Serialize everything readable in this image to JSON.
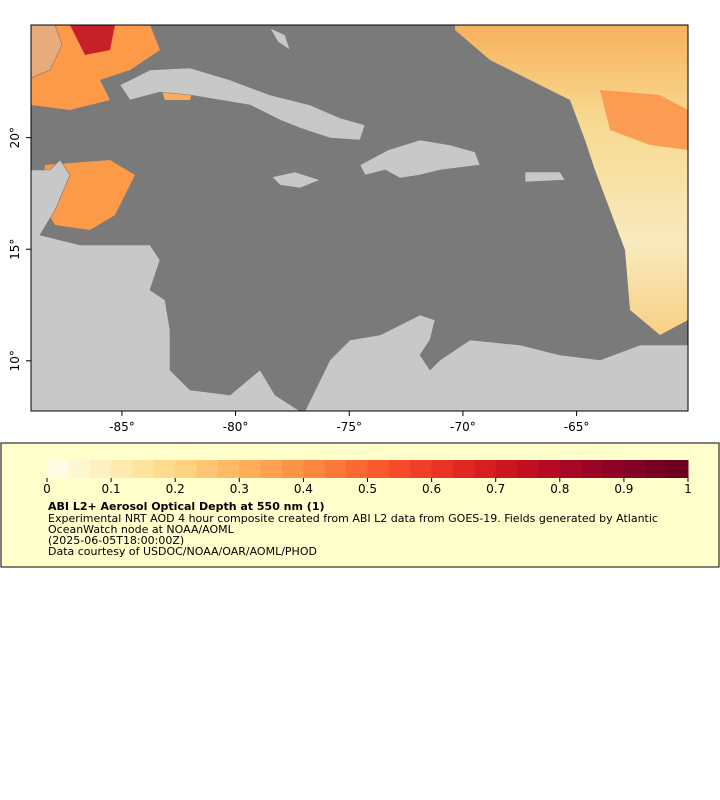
{
  "map": {
    "xlim": [
      -89,
      -60.1
    ],
    "ylim": [
      7.75,
      25.05
    ],
    "xticks": [
      {
        "value": -85,
        "label": "-85°"
      },
      {
        "value": -80,
        "label": "-80°"
      },
      {
        "value": -75,
        "label": "-75°"
      },
      {
        "value": -70,
        "label": "-70°"
      },
      {
        "value": -65,
        "label": "-65°"
      }
    ],
    "yticks": [
      {
        "value": 10,
        "label": "10°"
      },
      {
        "value": 15,
        "label": "15°"
      },
      {
        "value": 20,
        "label": "20°"
      }
    ]
  },
  "colorbar": {
    "vlim": [
      0,
      1
    ],
    "ticks": [
      0,
      0.1,
      0.2,
      0.3,
      0.4,
      0.5,
      0.6,
      0.7,
      0.8,
      0.9,
      1
    ],
    "colors": [
      "#fffbe4",
      "#fff6d2",
      "#fff0c0",
      "#feeaae",
      "#fee39e",
      "#fedb8e",
      "#fed280",
      "#fec672",
      "#feba65",
      "#fead5a",
      "#fea050",
      "#fd9347",
      "#fd8640",
      "#fc7839",
      "#fb6933",
      "#f85a2e",
      "#f44c2a",
      "#ef3f27",
      "#e83324",
      "#e02722",
      "#d71e20",
      "#cc161f",
      "#c10e21",
      "#b50924",
      "#a80626",
      "#9b0427",
      "#8e0226",
      "#820124",
      "#770021",
      "#6e001f"
    ]
  },
  "legend": {
    "title": "ABI L2+ Aerosol Optical Depth at 550 nm (1)",
    "lines": [
      "Experimental NRT AOD 4 hour composite created from ABI L2 data from GOES-19. Fields generated by Atlantic",
      "OceanWatch node at NOAA/AOML",
      "(2025-06-05T18:00:00Z)",
      "Data courtesy of USDOC/NOAA/OAR/AOML/PHOD"
    ]
  }
}
